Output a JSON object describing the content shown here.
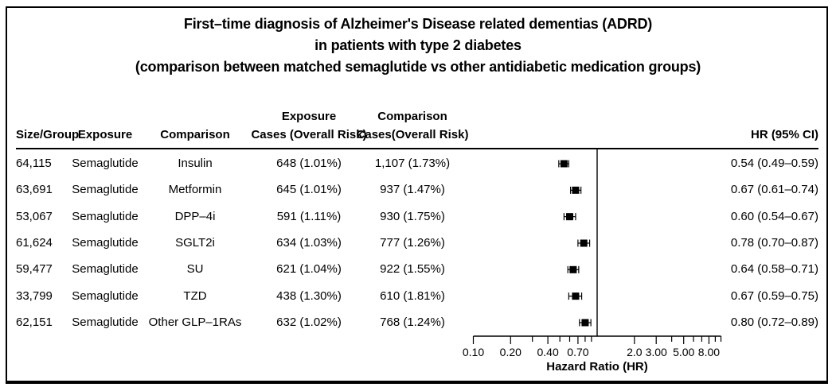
{
  "figure": {
    "title_lines": [
      "First–time diagnosis of Alzheimer's Disease related dementias (ADRD)",
      "in patients with type 2 diabetes",
      "(comparison between matched semaglutide vs other antidiabetic medication groups)"
    ]
  },
  "table": {
    "columns": {
      "size": "Size/Group",
      "exposure": "Exposure",
      "comparison": "Comparison",
      "exposure_cases_line1": "Exposure",
      "exposure_cases_line2": "Cases (Overall Risk)",
      "comparison_cases_line1": "Comparison",
      "comparison_cases_line2": "Cases(Overall Risk)",
      "hr": "HR (95% CI)"
    },
    "rows": [
      {
        "size": "64,115",
        "exposure": "Semaglutide",
        "comparison": "Insulin",
        "exposure_cases": "648 (1.01%)",
        "comparison_cases": "1,107 (1.73%)",
        "hr_ci": "0.54 (0.49–0.59)"
      },
      {
        "size": "63,691",
        "exposure": "Semaglutide",
        "comparison": "Metformin",
        "exposure_cases": "645 (1.01%)",
        "comparison_cases": "937 (1.47%)",
        "hr_ci": "0.67 (0.61–0.74)"
      },
      {
        "size": "53,067",
        "exposure": "Semaglutide",
        "comparison": "DPP–4i",
        "exposure_cases": "591 (1.11%)",
        "comparison_cases": "930 (1.75%)",
        "hr_ci": "0.60 (0.54–0.67)"
      },
      {
        "size": "61,624",
        "exposure": "Semaglutide",
        "comparison": "SGLT2i",
        "exposure_cases": "634 (1.03%)",
        "comparison_cases": "777 (1.26%)",
        "hr_ci": "0.78 (0.70–0.87)"
      },
      {
        "size": "59,477",
        "exposure": "Semaglutide",
        "comparison": "SU",
        "exposure_cases": "621 (1.04%)",
        "comparison_cases": "922 (1.55%)",
        "hr_ci": "0.64 (0.58–0.71)"
      },
      {
        "size": "33,799",
        "exposure": "Semaglutide",
        "comparison": "TZD",
        "exposure_cases": "438 (1.30%)",
        "comparison_cases": "610 (1.81%)",
        "hr_ci": "0.67 (0.59–0.75)"
      },
      {
        "size": "62,151",
        "exposure": "Semaglutide",
        "comparison": "Other GLP–1RAs",
        "exposure_cases": "632 (1.02%)",
        "comparison_cases": "768 (1.24%)",
        "hr_ci": "0.80 (0.72–0.89)"
      }
    ]
  },
  "chart_data": {
    "type": "forest",
    "scale": "log10",
    "xlabel": "Hazard Ratio (HR)",
    "xlim": [
      0.1,
      10
    ],
    "reference_line": 1.0,
    "marker_color": "#000000",
    "axis_ticks": [
      {
        "value": 0.1,
        "label": "0.10"
      },
      {
        "value": 0.2,
        "label": "0.20"
      },
      {
        "value": 0.3
      },
      {
        "value": 0.4,
        "label": "0.40"
      },
      {
        "value": 0.5
      },
      {
        "value": 0.6
      },
      {
        "value": 0.7,
        "label": "0.70"
      },
      {
        "value": 0.8
      },
      {
        "value": 0.9
      },
      {
        "value": 2,
        "label": "2.0"
      },
      {
        "value": 3,
        "label": "3.00"
      },
      {
        "value": 4
      },
      {
        "value": 5,
        "label": "5.00"
      },
      {
        "value": 6
      },
      {
        "value": 7
      },
      {
        "value": 8,
        "label": "8.00"
      },
      {
        "value": 9
      },
      {
        "value": 10
      }
    ],
    "series": [
      {
        "name": "Semaglutide vs Insulin",
        "hr": 0.54,
        "ci_low": 0.49,
        "ci_high": 0.59
      },
      {
        "name": "Semaglutide vs Metformin",
        "hr": 0.67,
        "ci_low": 0.61,
        "ci_high": 0.74
      },
      {
        "name": "Semaglutide vs DPP–4i",
        "hr": 0.6,
        "ci_low": 0.54,
        "ci_high": 0.67
      },
      {
        "name": "Semaglutide vs SGLT2i",
        "hr": 0.78,
        "ci_low": 0.7,
        "ci_high": 0.87
      },
      {
        "name": "Semaglutide vs SU",
        "hr": 0.64,
        "ci_low": 0.58,
        "ci_high": 0.71
      },
      {
        "name": "Semaglutide vs TZD",
        "hr": 0.67,
        "ci_low": 0.59,
        "ci_high": 0.75
      },
      {
        "name": "Semaglutide vs Other GLP–1RAs",
        "hr": 0.8,
        "ci_low": 0.72,
        "ci_high": 0.89
      }
    ]
  }
}
